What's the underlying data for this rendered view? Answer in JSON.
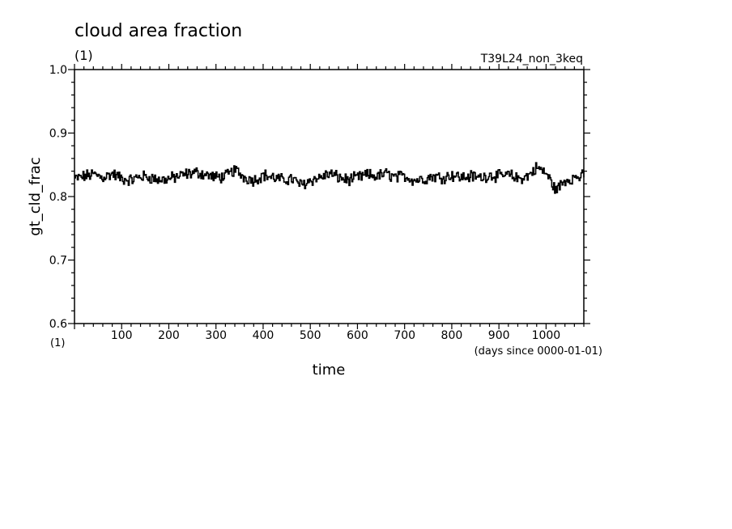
{
  "chart_data": {
    "type": "line",
    "title": "cloud area fraction",
    "title_units": "(1)",
    "run_label": "T39L24_non_3keq",
    "ylabel": "gt_cld_frac",
    "y_units": "(1)",
    "xlabel": "time",
    "x_units": "(days since 0000-01-01)",
    "xlim": [
      0,
      1080
    ],
    "ylim": [
      0.6,
      1.0
    ],
    "x_ticks": [
      100,
      200,
      300,
      400,
      500,
      600,
      700,
      800,
      900,
      1000
    ],
    "y_ticks": [
      "0.6",
      "0.7",
      "0.8",
      "0.9",
      "1.0"
    ],
    "x_step": 2,
    "y_anchors": [
      [
        0,
        0.828
      ],
      [
        20,
        0.832
      ],
      [
        40,
        0.835
      ],
      [
        60,
        0.83
      ],
      [
        80,
        0.836
      ],
      [
        100,
        0.828
      ],
      [
        120,
        0.826
      ],
      [
        140,
        0.832
      ],
      [
        160,
        0.83
      ],
      [
        180,
        0.826
      ],
      [
        200,
        0.828
      ],
      [
        220,
        0.832
      ],
      [
        240,
        0.836
      ],
      [
        260,
        0.838
      ],
      [
        280,
        0.834
      ],
      [
        300,
        0.83
      ],
      [
        320,
        0.832
      ],
      [
        340,
        0.842
      ],
      [
        360,
        0.83
      ],
      [
        380,
        0.826
      ],
      [
        400,
        0.834
      ],
      [
        420,
        0.83
      ],
      [
        440,
        0.826
      ],
      [
        460,
        0.828
      ],
      [
        480,
        0.818
      ],
      [
        500,
        0.826
      ],
      [
        520,
        0.83
      ],
      [
        540,
        0.836
      ],
      [
        560,
        0.83
      ],
      [
        580,
        0.826
      ],
      [
        600,
        0.83
      ],
      [
        620,
        0.834
      ],
      [
        640,
        0.832
      ],
      [
        660,
        0.836
      ],
      [
        680,
        0.83
      ],
      [
        700,
        0.832
      ],
      [
        720,
        0.826
      ],
      [
        740,
        0.828
      ],
      [
        760,
        0.832
      ],
      [
        780,
        0.83
      ],
      [
        800,
        0.834
      ],
      [
        820,
        0.83
      ],
      [
        840,
        0.832
      ],
      [
        860,
        0.83
      ],
      [
        880,
        0.834
      ],
      [
        900,
        0.832
      ],
      [
        920,
        0.834
      ],
      [
        940,
        0.828
      ],
      [
        960,
        0.832
      ],
      [
        980,
        0.846
      ],
      [
        1000,
        0.836
      ],
      [
        1020,
        0.81
      ],
      [
        1040,
        0.826
      ],
      [
        1060,
        0.83
      ],
      [
        1080,
        0.832
      ]
    ],
    "line_color": "#000000",
    "grid": false
  }
}
